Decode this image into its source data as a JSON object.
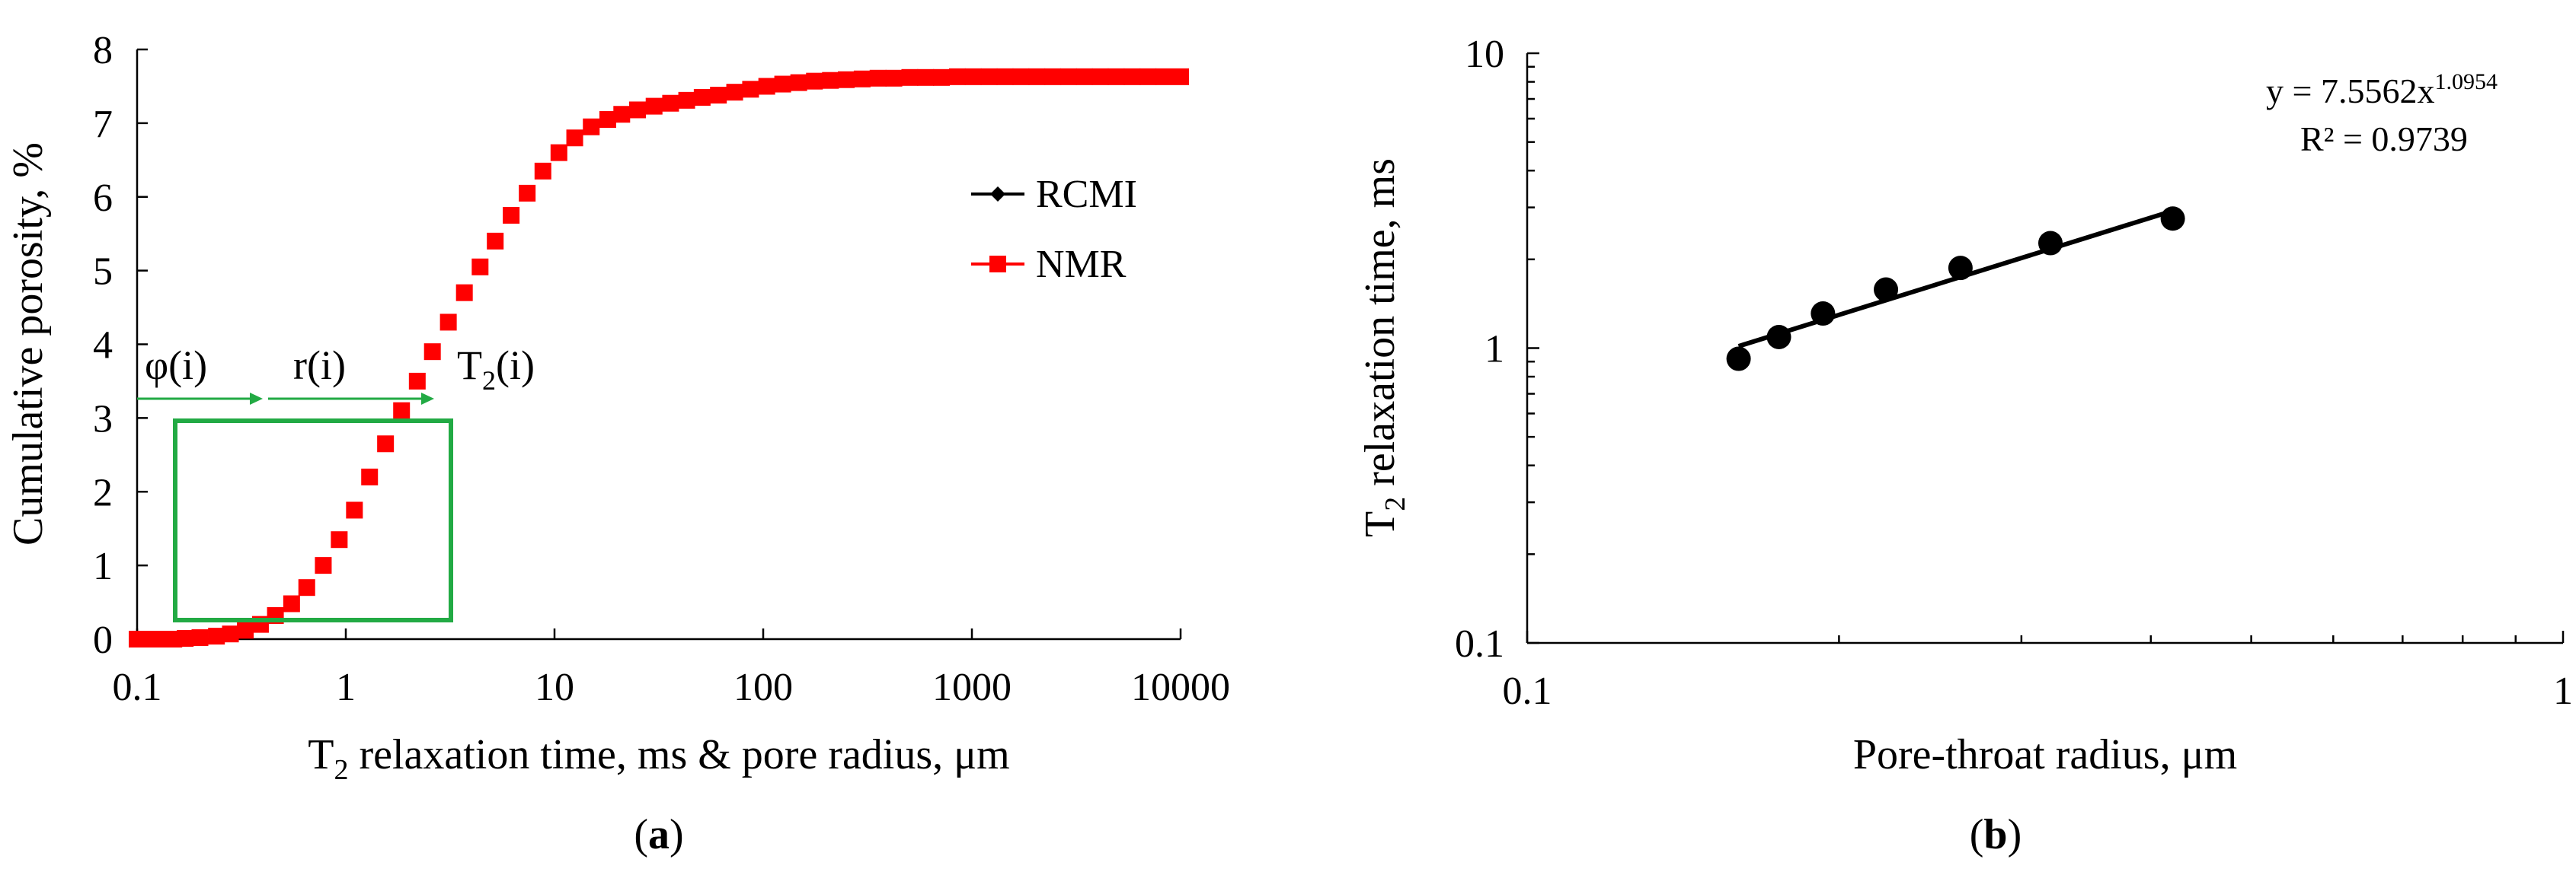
{
  "chart_data": [
    {
      "type": "scatter",
      "panel_label": "a",
      "xlabel": "T2 relaxation time, ms & pore radius, μm",
      "xlabel_parts": {
        "main": "T",
        "sub": "2",
        "rest": " relaxation time, ms & pore radius, μm"
      },
      "ylabel": "Cumulative porosity, %",
      "x_scale": "log",
      "xlim": [
        0.1,
        10000
      ],
      "ylim": [
        0,
        8
      ],
      "x_ticks": [
        "0.1",
        "1",
        "10",
        "100",
        "1000",
        "10000"
      ],
      "y_ticks": [
        "0",
        "1",
        "2",
        "3",
        "4",
        "5",
        "6",
        "7",
        "8"
      ],
      "legend_position": "right",
      "series": [
        {
          "name": "RCMI",
          "marker": "diamond",
          "color": "#000000",
          "x": [],
          "y": []
        },
        {
          "name": "NMR",
          "marker": "square",
          "color": "#ff0000",
          "x": [
            0.1,
            0.11,
            0.13,
            0.15,
            0.17,
            0.2,
            0.24,
            0.28,
            0.33,
            0.39,
            0.46,
            0.55,
            0.65,
            0.78,
            0.93,
            1.1,
            1.3,
            1.55,
            1.85,
            2.2,
            2.6,
            3.1,
            3.7,
            4.4,
            5.2,
            6.2,
            7.4,
            8.8,
            10.5,
            12.5,
            15,
            18,
            21,
            25,
            30,
            36,
            43,
            51,
            61,
            73,
            87,
            104,
            124,
            148,
            176,
            210,
            250,
            298,
            355,
            423,
            504,
            600,
            715,
            852,
            1015,
            1210,
            1442,
            1718,
            2047,
            2439,
            2906,
            3462,
            4125,
            4915,
            5856,
            6977,
            8312,
            10000
          ],
          "y": [
            0,
            0,
            0,
            0,
            0.01,
            0.02,
            0.04,
            0.07,
            0.12,
            0.2,
            0.32,
            0.48,
            0.7,
            1.0,
            1.35,
            1.75,
            2.2,
            2.65,
            3.1,
            3.5,
            3.9,
            4.3,
            4.7,
            5.05,
            5.4,
            5.75,
            6.05,
            6.35,
            6.6,
            6.8,
            6.95,
            7.05,
            7.12,
            7.18,
            7.23,
            7.27,
            7.31,
            7.35,
            7.38,
            7.42,
            7.46,
            7.5,
            7.53,
            7.55,
            7.57,
            7.58,
            7.59,
            7.6,
            7.61,
            7.61,
            7.62,
            7.62,
            7.62,
            7.63,
            7.63,
            7.63,
            7.63,
            7.63,
            7.63,
            7.63,
            7.63,
            7.63,
            7.63,
            7.63,
            7.63,
            7.63,
            7.63,
            7.63
          ]
        }
      ],
      "annotations": [
        {
          "text": "φ(i)"
        },
        {
          "text": "r(i)"
        },
        {
          "text": "T2(i)",
          "main": "T",
          "sub": "2",
          "rest": "(i)"
        }
      ],
      "highlight_box_color": "#22aa44"
    },
    {
      "type": "scatter",
      "panel_label": "b",
      "xlabel": "Pore-throat radius, μm",
      "ylabel": "T2 relaxation time, ms",
      "ylabel_parts": {
        "main": "T",
        "sub": "2",
        "rest": " relaxation time, ms"
      },
      "x_scale": "log",
      "y_scale": "log",
      "xlim": [
        0.1,
        1
      ],
      "ylim": [
        0.1,
        10
      ],
      "x_ticks": [
        "0.1",
        "1"
      ],
      "y_ticks": [
        "0.1",
        "1",
        "10"
      ],
      "series": [
        {
          "marker": "circle",
          "color": "#000000",
          "x": [
            0.16,
            0.175,
            0.193,
            0.222,
            0.262,
            0.32,
            0.42
          ],
          "y": [
            0.92,
            1.09,
            1.31,
            1.58,
            1.87,
            2.27,
            2.75
          ]
        }
      ],
      "trendline": {
        "equation_text": "y = 7.5562x",
        "equation_exponent": "1.0954",
        "r2_text": "R² = 0.9739",
        "a": 7.5562,
        "b": 1.0954,
        "x_range": [
          0.16,
          0.42
        ]
      }
    }
  ]
}
